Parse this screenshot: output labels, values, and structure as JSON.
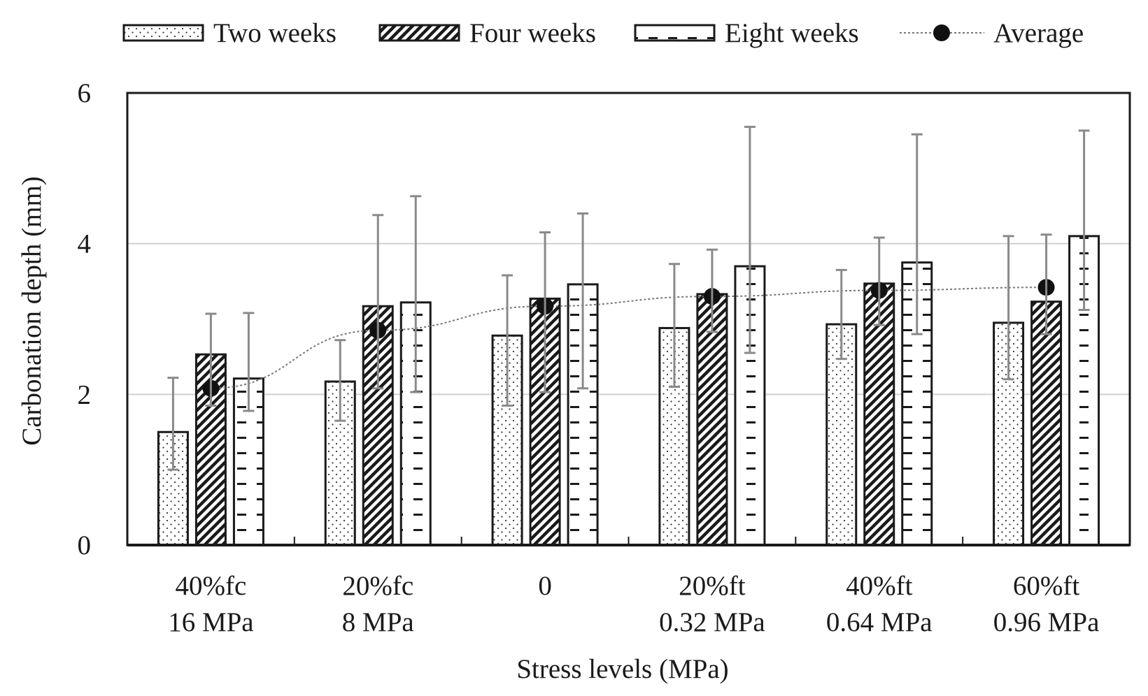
{
  "chart_data": {
    "type": "bar",
    "xlabel": "Stress levels (MPa)",
    "ylabel": "Carbonation depth (mm)",
    "ylim": [
      0,
      6
    ],
    "yticks": [
      0,
      2,
      4,
      6
    ],
    "grid": "horizontal at 2 and 4",
    "legend_placement": "top",
    "categories": [
      {
        "line1": "40%fc",
        "line2": "16 MPa"
      },
      {
        "line1": "20%fc",
        "line2": "8 MPa"
      },
      {
        "line1": "0",
        "line2": ""
      },
      {
        "line1": "20%ft",
        "line2": "0.32 MPa"
      },
      {
        "line1": "40%ft",
        "line2": "0.64 MPa"
      },
      {
        "line1": "60%ft",
        "line2": "0.96 MPa"
      }
    ],
    "series": [
      {
        "name": "Two weeks",
        "pattern": "dots",
        "values": [
          1.5,
          2.17,
          2.78,
          2.88,
          2.93,
          2.95
        ],
        "error_low": [
          1.0,
          1.65,
          1.85,
          2.1,
          2.47,
          2.2
        ],
        "error_high": [
          2.22,
          2.72,
          3.58,
          3.73,
          3.65,
          4.1
        ]
      },
      {
        "name": "Four weeks",
        "pattern": "hatch",
        "values": [
          2.53,
          3.17,
          3.27,
          3.33,
          3.47,
          3.23
        ],
        "error_low": [
          1.85,
          2.08,
          2.03,
          2.83,
          2.92,
          2.8
        ],
        "error_high": [
          3.07,
          4.38,
          4.15,
          3.92,
          4.08,
          4.12
        ]
      },
      {
        "name": "Eight weeks",
        "pattern": "dashes",
        "values": [
          2.21,
          3.22,
          3.46,
          3.7,
          3.75,
          4.1
        ],
        "error_low": [
          1.78,
          2.03,
          2.08,
          2.55,
          2.8,
          3.12
        ],
        "error_high": [
          3.08,
          4.63,
          4.4,
          5.55,
          5.45,
          5.5
        ]
      },
      {
        "name": "Average",
        "type": "line-marker",
        "values": [
          2.08,
          2.85,
          3.17,
          3.3,
          3.38,
          3.42
        ]
      }
    ],
    "colors": {
      "bar_fill": "#ffffff",
      "bar_stroke": "#1a1a1a",
      "grid": "#d0d0d0",
      "error": "#8a8a8a",
      "average_marker": "#111111",
      "average_line": "#777777"
    }
  }
}
